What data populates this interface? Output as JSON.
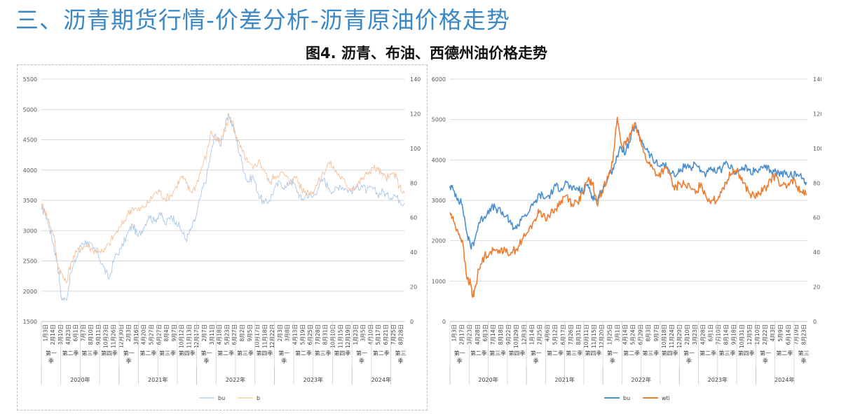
{
  "header": {
    "slide_title": "三、沥青期货行情-价差分析-沥青原油价格走势",
    "figure_title": "图4. 沥青、布油、西德州油价格走势"
  },
  "colors": {
    "title_blue": "#3b88c4",
    "bu_left": "#a9c6e8",
    "b_left": "#f6bf98",
    "bu_right": "#4a8fcf",
    "wti_right": "#ed7d31"
  },
  "chart_data": [
    {
      "type": "line",
      "title": "",
      "series": [
        {
          "name": "bu",
          "axis": "left",
          "x": [
            "2020-01-03",
            "2020-01-20",
            "2020-02-10",
            "2020-03-01",
            "2020-03-19",
            "2020-04-05",
            "2020-04-28",
            "2020-05-20",
            "2020-06-15",
            "2020-07-10",
            "2020-08-05",
            "2020-09-01",
            "2020-09-25",
            "2020-10-20",
            "2020-11-15",
            "2020-12-10",
            "2021-01-10",
            "2021-02-10",
            "2021-03-05",
            "2021-03-30",
            "2021-04-25",
            "2021-05-20",
            "2021-06-15",
            "2021-07-10",
            "2021-08-05",
            "2021-09-01",
            "2021-09-25",
            "2021-10-20",
            "2021-11-10",
            "2021-12-01",
            "2021-12-25",
            "2022-01-20",
            "2022-02-15",
            "2022-03-08",
            "2022-03-28",
            "2022-04-18",
            "2022-05-10",
            "2022-05-30",
            "2022-06-20",
            "2022-07-10",
            "2022-08-01",
            "2022-08-25",
            "2022-09-20",
            "2022-10-15",
            "2022-11-10",
            "2022-12-05",
            "2022-12-30",
            "2023-01-25",
            "2023-02-20",
            "2023-03-15",
            "2023-04-10",
            "2023-05-05",
            "2023-05-30",
            "2023-06-25",
            "2023-07-20",
            "2023-08-15",
            "2023-09-10",
            "2023-10-05",
            "2023-10-30",
            "2023-11-25",
            "2023-12-20",
            "2024-01-15",
            "2024-02-10",
            "2024-03-05",
            "2024-04-01",
            "2024-04-25",
            "2024-05-20",
            "2024-06-15",
            "2024-07-10",
            "2024-08-05",
            "2024-08-28"
          ],
          "y": [
            3350,
            3300,
            3050,
            2750,
            2450,
            1900,
            1850,
            2300,
            2550,
            2800,
            2820,
            2700,
            2600,
            2400,
            2200,
            2550,
            2700,
            2950,
            3100,
            2900,
            3050,
            3250,
            3150,
            3300,
            3100,
            3250,
            3150,
            3000,
            2850,
            3000,
            3200,
            3600,
            3900,
            4300,
            4600,
            4400,
            4700,
            4900,
            4700,
            4400,
            4100,
            3800,
            3900,
            3600,
            3450,
            3500,
            3700,
            3800,
            3700,
            3850,
            3700,
            3500,
            3600,
            3550,
            3700,
            3850,
            3700,
            3650,
            3750,
            3700,
            3650,
            3700,
            3750,
            3650,
            3700,
            3600,
            3650,
            3550,
            3600,
            3500,
            3450
          ]
        },
        {
          "name": "b",
          "axis": "right",
          "x": [
            "2020-01-03",
            "2020-01-20",
            "2020-02-10",
            "2020-03-01",
            "2020-03-19",
            "2020-04-05",
            "2020-04-28",
            "2020-05-20",
            "2020-06-15",
            "2020-07-10",
            "2020-08-05",
            "2020-09-01",
            "2020-09-25",
            "2020-10-20",
            "2020-11-15",
            "2020-12-10",
            "2021-01-10",
            "2021-02-10",
            "2021-03-05",
            "2021-03-30",
            "2021-04-25",
            "2021-05-20",
            "2021-06-15",
            "2021-07-10",
            "2021-08-05",
            "2021-09-01",
            "2021-09-25",
            "2021-10-20",
            "2021-11-10",
            "2021-12-01",
            "2021-12-25",
            "2022-01-20",
            "2022-02-15",
            "2022-03-08",
            "2022-03-28",
            "2022-04-18",
            "2022-05-10",
            "2022-05-30",
            "2022-06-20",
            "2022-07-10",
            "2022-08-01",
            "2022-08-25",
            "2022-09-20",
            "2022-10-15",
            "2022-11-10",
            "2022-12-05",
            "2022-12-30",
            "2023-01-25",
            "2023-02-20",
            "2023-03-15",
            "2023-04-10",
            "2023-05-05",
            "2023-05-30",
            "2023-06-25",
            "2023-07-20",
            "2023-08-15",
            "2023-09-10",
            "2023-10-05",
            "2023-10-30",
            "2023-11-25",
            "2023-12-20",
            "2024-01-15",
            "2024-02-10",
            "2024-03-05",
            "2024-04-01",
            "2024-04-25",
            "2024-05-20",
            "2024-06-15",
            "2024-07-10",
            "2024-08-05",
            "2024-08-28"
          ],
          "y": [
            68,
            64,
            57,
            50,
            33,
            28,
            22,
            34,
            40,
            43,
            44,
            41,
            42,
            40,
            45,
            50,
            55,
            62,
            66,
            64,
            66,
            69,
            74,
            75,
            71,
            73,
            78,
            84,
            80,
            75,
            78,
            88,
            97,
            110,
            105,
            104,
            110,
            118,
            114,
            104,
            98,
            92,
            88,
            93,
            88,
            80,
            84,
            86,
            84,
            80,
            84,
            76,
            75,
            75,
            80,
            86,
            92,
            88,
            84,
            80,
            77,
            78,
            82,
            85,
            89,
            88,
            84,
            83,
            86,
            78,
            74
          ]
        },
        {
          "name": "bu",
          "axis": "left",
          "note_skip": true,
          "x": [],
          "y": []
        }
      ],
      "legend": [
        "bu",
        "b"
      ],
      "legend_position": "bottom",
      "left_axis": {
        "ticks": [
          1500,
          2000,
          2500,
          3000,
          3500,
          4000,
          4500,
          5000,
          5500
        ],
        "ylim": [
          1500,
          5500
        ]
      },
      "right_axis": {
        "ticks": [
          0,
          20,
          40,
          60,
          80,
          100,
          120,
          140
        ],
        "ylim": [
          0,
          140
        ]
      },
      "x_date_labels": [
        "1月3日",
        "2月14日",
        "3月19日",
        "4月23日",
        "6月1日",
        "7月7日",
        "8月10日",
        "9月11日",
        "10月23日",
        "11月26日",
        "12月30日",
        "2月3日",
        "3月16日",
        "4月20日",
        "5月27日",
        "6月27日",
        "8月4日",
        "9月7日",
        "10月12日",
        "11月13日",
        "12月17日",
        "2月7日",
        "3月11日",
        "4月18日",
        "5月23日",
        "6月27日",
        "8月2日",
        "9月5日",
        "10月17日",
        "11月18日",
        "12月22日",
        "2月3日",
        "3月8日",
        "4月13日",
        "5月19日",
        "6月25日",
        "7月28日",
        "8月31日",
        "10月10日",
        "11月15日",
        "12月19日",
        "1月23日",
        "3月5日",
        "4月10日",
        "5月17日",
        "6月21日",
        "7月25日",
        "8月28日"
      ],
      "x_quarter_labels": [
        "第一季",
        "第二季",
        "第三季",
        "第四季",
        "第一季",
        "第二季",
        "第三季",
        "第四季",
        "第一季",
        "第二季",
        "第三季",
        "第四季",
        "第一季",
        "第二季",
        "第三季",
        "第四季",
        "第一季",
        "第二季",
        "第三季"
      ],
      "x_year_labels": [
        "2020年",
        "2021年",
        "2022年",
        "2023年",
        "2024年"
      ],
      "grid": true
    },
    {
      "type": "line",
      "title": "",
      "series": [
        {
          "name": "bu",
          "axis": "left",
          "x": [
            "2020-01-03",
            "2020-01-20",
            "2020-02-10",
            "2020-03-01",
            "2020-03-23",
            "2020-04-10",
            "2020-04-28",
            "2020-05-20",
            "2020-06-15",
            "2020-07-10",
            "2020-08-05",
            "2020-09-01",
            "2020-09-25",
            "2020-10-20",
            "2020-11-15",
            "2020-12-10",
            "2021-01-10",
            "2021-02-10",
            "2021-03-05",
            "2021-03-30",
            "2021-04-25",
            "2021-05-20",
            "2021-06-15",
            "2021-07-10",
            "2021-08-05",
            "2021-09-01",
            "2021-09-25",
            "2021-10-20",
            "2021-11-10",
            "2021-12-01",
            "2021-12-25",
            "2022-01-20",
            "2022-02-15",
            "2022-03-08",
            "2022-03-28",
            "2022-04-18",
            "2022-05-10",
            "2022-05-30",
            "2022-06-20",
            "2022-07-10",
            "2022-08-01",
            "2022-08-25",
            "2022-09-20",
            "2022-10-15",
            "2022-11-10",
            "2022-12-05",
            "2022-12-30",
            "2023-01-25",
            "2023-02-20",
            "2023-03-15",
            "2023-04-10",
            "2023-05-05",
            "2023-05-30",
            "2023-06-25",
            "2023-07-20",
            "2023-08-15",
            "2023-09-10",
            "2023-10-05",
            "2023-10-30",
            "2023-11-25",
            "2023-12-20",
            "2024-01-15",
            "2024-02-10",
            "2024-03-05",
            "2024-04-01",
            "2024-04-25",
            "2024-05-20",
            "2024-06-15",
            "2024-07-10",
            "2024-08-05",
            "2024-08-23"
          ],
          "y": [
            3350,
            3250,
            3050,
            2900,
            2200,
            1850,
            2000,
            2450,
            2600,
            2800,
            2820,
            2700,
            2600,
            2400,
            2300,
            2600,
            2700,
            2950,
            3150,
            3050,
            3150,
            3350,
            3300,
            3450,
            3250,
            3300,
            3200,
            3400,
            3100,
            3000,
            3250,
            3500,
            3800,
            4100,
            4300,
            4200,
            4500,
            4850,
            4600,
            4400,
            4200,
            4000,
            3850,
            3900,
            3750,
            3600,
            3700,
            3900,
            3800,
            3900,
            3750,
            3650,
            3750,
            3700,
            3800,
            3900,
            3750,
            3700,
            3800,
            3750,
            3700,
            3750,
            3800,
            3750,
            3700,
            3650,
            3700,
            3600,
            3650,
            3550,
            3450
          ]
        },
        {
          "name": "wti",
          "axis": "right",
          "x": [
            "2020-01-03",
            "2020-01-20",
            "2020-02-10",
            "2020-03-01",
            "2020-03-23",
            "2020-04-10",
            "2020-04-20",
            "2020-04-28",
            "2020-05-20",
            "2020-06-15",
            "2020-07-10",
            "2020-08-05",
            "2020-09-01",
            "2020-09-25",
            "2020-10-20",
            "2020-11-15",
            "2020-12-10",
            "2021-01-10",
            "2021-02-10",
            "2021-03-05",
            "2021-03-30",
            "2021-04-25",
            "2021-05-20",
            "2021-06-15",
            "2021-07-10",
            "2021-08-05",
            "2021-09-01",
            "2021-09-25",
            "2021-10-20",
            "2021-11-10",
            "2021-12-01",
            "2021-12-25",
            "2022-01-20",
            "2022-02-15",
            "2022-03-08",
            "2022-03-28",
            "2022-04-18",
            "2022-05-10",
            "2022-05-30",
            "2022-06-20",
            "2022-07-10",
            "2022-08-01",
            "2022-08-25",
            "2022-09-20",
            "2022-10-15",
            "2022-11-10",
            "2022-12-05",
            "2022-12-30",
            "2023-01-25",
            "2023-02-20",
            "2023-03-15",
            "2023-04-10",
            "2023-05-05",
            "2023-05-30",
            "2023-06-25",
            "2023-07-20",
            "2023-08-15",
            "2023-09-10",
            "2023-10-05",
            "2023-10-30",
            "2023-11-25",
            "2023-12-20",
            "2024-01-15",
            "2024-02-10",
            "2024-03-05",
            "2024-04-01",
            "2024-04-25",
            "2024-05-20",
            "2024-06-15",
            "2024-07-10",
            "2024-08-05",
            "2024-08-23"
          ],
          "y": [
            63,
            58,
            52,
            47,
            25,
            22,
            14,
            18,
            30,
            38,
            40,
            41,
            42,
            40,
            40,
            42,
            47,
            52,
            59,
            64,
            60,
            62,
            65,
            70,
            73,
            68,
            69,
            74,
            82,
            80,
            68,
            74,
            84,
            92,
            118,
            102,
            102,
            108,
            115,
            108,
            98,
            92,
            88,
            84,
            88,
            86,
            76,
            80,
            79,
            77,
            74,
            80,
            72,
            70,
            70,
            77,
            82,
            88,
            86,
            80,
            74,
            72,
            74,
            77,
            82,
            84,
            79,
            77,
            82,
            78,
            74,
            73
          ]
        }
      ],
      "legend": [
        "bu",
        "wti"
      ],
      "legend_position": "bottom",
      "left_axis": {
        "ticks": [
          0,
          1000,
          2000,
          3000,
          4000,
          5000,
          6000
        ],
        "ylim": [
          0,
          6000
        ]
      },
      "right_axis": {
        "ticks": [
          0,
          20,
          40,
          60,
          80,
          100,
          120,
          140
        ],
        "ylim": [
          0,
          140
        ]
      },
      "x_date_labels": [
        "1月3日",
        "2月17日",
        "3月23日",
        "4月28日",
        "6月3日",
        "7月14日",
        "8月18日",
        "9月22日",
        "10月29日",
        "12月3日",
        "1月14日",
        "2月25日",
        "4月6日",
        "5月12日",
        "6月17日",
        "7月26日",
        "8月31日",
        "10月11日",
        "11月15日",
        "12月20日",
        "1月25日",
        "3月1日",
        "4月14日",
        "5月24日",
        "6月29日",
        "8月3日",
        "9月7日",
        "10月18日",
        "11月24日",
        "12月29日",
        "2月10日",
        "3月23日",
        "4月28日",
        "6月1日",
        "7月10日",
        "8月14日",
        "9月18日",
        "10月31日",
        "12月5日",
        "1月10日",
        "2月22日",
        "4月3日",
        "5月9日",
        "6月14日",
        "7月19日",
        "8月23日"
      ],
      "x_quarter_labels": [
        "第一季",
        "第二季",
        "第三季",
        "第四季",
        "第一季",
        "第二季",
        "第三季",
        "第四季",
        "第一季",
        "第二季",
        "第三季",
        "第四季",
        "第一季",
        "第二季",
        "第三季",
        "第四季",
        "第一季",
        "第二季",
        "第三季"
      ],
      "x_year_labels": [
        "2020年",
        "2021年",
        "2022年",
        "2023年",
        "2024年"
      ],
      "grid": true
    }
  ]
}
